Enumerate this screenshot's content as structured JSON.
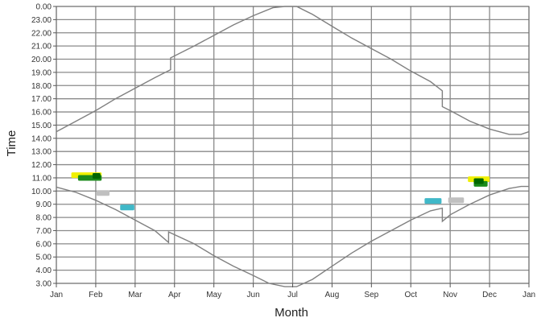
{
  "chart_data": {
    "type": "line",
    "title": "",
    "xlabel": "Month",
    "ylabel": "Time",
    "x_ticks": [
      "Jan",
      "Feb",
      "Mar",
      "Apr",
      "May",
      "Jun",
      "Jul",
      "Aug",
      "Sep",
      "Oct",
      "Nov",
      "Dec",
      "Jan"
    ],
    "y_ticks": [
      "0.00",
      "23.00",
      "22.00",
      "21.00",
      "20.00",
      "19.00",
      "18.00",
      "17.00",
      "16.00",
      "15.00",
      "14.00",
      "13.00",
      "12.00",
      "11.00",
      "10.00",
      "9.00",
      "8.00",
      "7.00",
      "6.00",
      "5.00",
      "4.00",
      "3.00"
    ],
    "y_top_is": 24,
    "y_bottom_is": 3,
    "x_range_months": [
      0,
      12
    ],
    "grid": true,
    "series": [
      {
        "color": "#808080",
        "x": [
          0,
          0.5,
          1.0,
          1.5,
          2.0,
          2.5,
          2.9,
          2.9,
          3.5,
          4.0,
          4.5,
          5.0,
          5.5,
          5.8,
          6.1,
          6.5,
          7.0,
          7.5,
          8.0,
          8.5,
          9.0,
          9.5,
          9.8,
          9.8,
          10.0,
          10.5,
          11.0,
          11.5,
          11.8,
          12.0
        ],
        "y": [
          14.5,
          15.3,
          16.1,
          17.0,
          17.8,
          18.6,
          19.2,
          20.1,
          21.0,
          21.8,
          22.6,
          23.3,
          23.9,
          24.0,
          24.0,
          23.4,
          22.5,
          21.6,
          20.8,
          20.0,
          19.1,
          18.3,
          17.6,
          16.4,
          16.1,
          15.3,
          14.7,
          14.3,
          14.3,
          14.5
        ]
      },
      {
        "color": "#808080",
        "x": [
          0,
          0.5,
          1.0,
          1.5,
          2.0,
          2.5,
          2.85,
          2.85,
          3.5,
          4.0,
          4.5,
          5.0,
          5.4,
          5.8,
          6.1,
          6.5,
          7.0,
          7.5,
          8.0,
          8.5,
          9.0,
          9.5,
          9.8,
          9.8,
          10.0,
          10.5,
          11.0,
          11.5,
          11.8,
          12.0
        ],
        "y": [
          10.3,
          9.9,
          9.3,
          8.6,
          7.8,
          7.0,
          6.1,
          6.9,
          6.0,
          5.1,
          4.3,
          3.6,
          3.0,
          2.75,
          2.75,
          3.3,
          4.3,
          5.3,
          6.2,
          7.0,
          7.8,
          8.5,
          8.7,
          7.7,
          8.2,
          9.0,
          9.7,
          10.2,
          10.35,
          10.35
        ]
      }
    ],
    "markers": [
      {
        "color": "#f0f000",
        "x_start": 0.38,
        "x_end": 1.15,
        "y": 11.2
      },
      {
        "color": "#1a8a1a",
        "x_start": 0.55,
        "x_end": 1.15,
        "y": 11.0
      },
      {
        "color": "#006600",
        "x_start": 0.92,
        "x_end": 1.12,
        "y": 11.15
      },
      {
        "color": "#c0c0c0",
        "x_start": 1.02,
        "x_end": 1.35,
        "y": 9.85
      },
      {
        "color": "#40b8c8",
        "x_start": 1.62,
        "x_end": 1.98,
        "y": 8.75
      },
      {
        "color": "#40b8c8",
        "x_start": 9.35,
        "x_end": 9.78,
        "y": 9.25
      },
      {
        "color": "#c0c0c0",
        "x_start": 9.95,
        "x_end": 10.35,
        "y": 9.3
      },
      {
        "color": "#f0f000",
        "x_start": 10.45,
        "x_end": 11.0,
        "y": 10.9
      },
      {
        "color": "#1a8a1a",
        "x_start": 10.6,
        "x_end": 10.95,
        "y": 10.55
      },
      {
        "color": "#006600",
        "x_start": 10.6,
        "x_end": 10.85,
        "y": 10.75
      }
    ]
  }
}
